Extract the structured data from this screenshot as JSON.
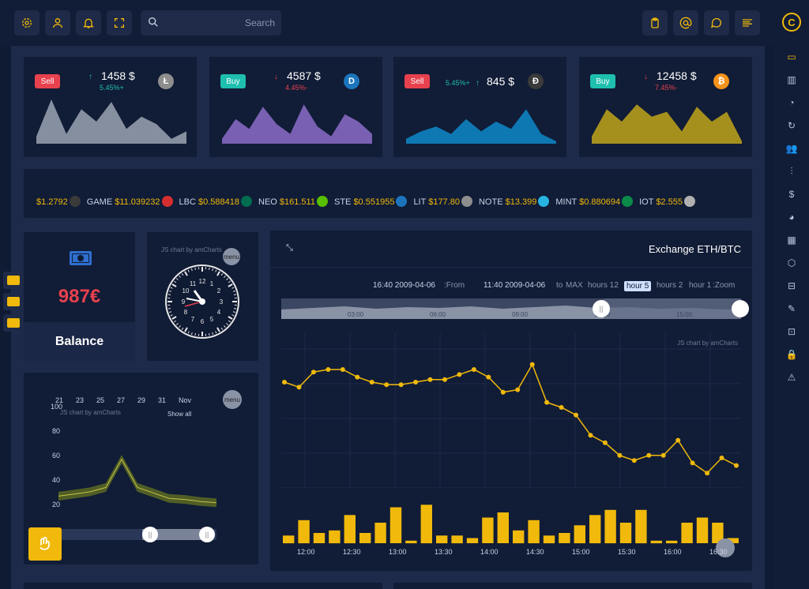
{
  "topbar": {
    "search_placeholder": "Search",
    "icons_left": [
      "gear-icon",
      "user-icon",
      "bell-icon",
      "fullscreen-icon"
    ],
    "icons_right": [
      "clipboard-icon",
      "at-icon",
      "chat-icon",
      "menu-lines-icon"
    ]
  },
  "rightbar": {
    "logo": "C",
    "items": [
      "monitor-icon",
      "bar-chart-icon",
      "pie-chart-icon",
      "refresh-icon",
      "users-icon",
      "sliders-icon",
      "dollar-icon",
      "pie-icon",
      "grid-icon",
      "box-icon",
      "inbox-icon",
      "edit-icon",
      "cast-icon",
      "lock-icon",
      "alert-icon"
    ]
  },
  "tickers_cards": [
    {
      "badge": "Sell",
      "price": "1458 $",
      "pct": "5.45%+",
      "trend": "up",
      "coin": "Ł",
      "coin_color": "#8e8e8e",
      "area_color": "#9aa3b2",
      "values": [
        3,
        18,
        4,
        14,
        9,
        17,
        6,
        11,
        8,
        2,
        5
      ]
    },
    {
      "badge": "Buy",
      "price": "4587 $",
      "pct": "4.45%-",
      "trend": "down",
      "coin": "D",
      "coin_color": "#1c75bc",
      "area_color": "#8c6cc8",
      "values": [
        2,
        10,
        6,
        15,
        8,
        4,
        16,
        7,
        3,
        12,
        9,
        4
      ]
    },
    {
      "badge": "Sell",
      "price": "845 $",
      "pct": "5.45%+",
      "trend": "up",
      "coin": "Ð",
      "coin_color": "#3a3a3a",
      "area_color": "#0e88c9",
      "values": [
        2,
        5,
        7,
        4,
        10,
        5,
        9,
        6,
        14,
        4,
        1
      ]
    },
    {
      "badge": "Buy",
      "price": "12458 $",
      "pct": "7.45%-",
      "trend": "down",
      "coin": "₿",
      "coin_color": "#f7931a",
      "area_color": "#bfa51a",
      "values": [
        3,
        14,
        9,
        16,
        11,
        13,
        5,
        15,
        9,
        13,
        1
      ]
    }
  ],
  "ticker_strip": [
    {
      "name": "",
      "value": "$1.2792",
      "color": "#3a3a3a"
    },
    {
      "name": "GAME",
      "value": "$11.039232",
      "color": "#d62e2e"
    },
    {
      "name": "LBC",
      "value": "$0.588418",
      "color": "#006d4f"
    },
    {
      "name": "NEO",
      "value": "$161.511",
      "color": "#58bf00"
    },
    {
      "name": "STE",
      "value": "$0.551955",
      "color": "#1c75bc"
    },
    {
      "name": "LIT",
      "value": "$177.80",
      "color": "#8e8e8e"
    },
    {
      "name": "NOTE",
      "value": "$13.399",
      "color": "#27b4e0"
    },
    {
      "name": "MINT",
      "value": "$0.880694",
      "color": "#0b8a49"
    },
    {
      "name": "IOT",
      "value": "$2.555",
      "color": "#b0b0b0"
    }
  ],
  "balance": {
    "amount": "987€",
    "label": "Balance"
  },
  "clock": {
    "credit": "JS chart by amCharts",
    "menu": "menu"
  },
  "band_chart": {
    "credit": "JS chart by amCharts",
    "menu": "menu",
    "show_all": "Show all",
    "xticks": [
      "21",
      "23",
      "25",
      "27",
      "29",
      "31",
      "Nov"
    ],
    "yticks": [
      "100",
      "80",
      "60",
      "40",
      "20"
    ]
  },
  "exchange": {
    "title": "Exchange ETH/BTC",
    "from_label": ":From",
    "from_value": "16:40 2009-04-06",
    "to_label": "to",
    "to_value": "11:40 2009-04-06",
    "zoom_label": ":Zoom",
    "zoom_buttons": [
      "MAX",
      "hours 12",
      "hour 5",
      "hours 2",
      "hour 1"
    ],
    "zoom_active": "hour 5",
    "scrollbar_ticks": [
      "03:00",
      "06:00",
      "09:00",
      "12:00",
      "15:00"
    ],
    "credit": "JS chart by amCharts",
    "time_ticks": [
      "12:00",
      "12:30",
      "13:00",
      "13:30",
      "14:00",
      "14:30",
      "15:00",
      "15:30",
      "16:00",
      "16:30"
    ]
  },
  "chart_data": [
    {
      "type": "line",
      "title": "Exchange ETH/BTC",
      "series": [
        {
          "values": [
            80,
            78,
            84,
            85,
            85,
            82,
            80,
            79,
            79,
            80,
            81,
            81,
            83,
            85,
            82,
            76,
            77,
            87,
            72,
            70,
            67,
            59,
            56,
            51,
            49,
            51,
            51,
            57,
            48,
            44,
            50,
            47
          ]
        }
      ],
      "ylim": [
        40,
        90
      ]
    },
    {
      "type": "bar",
      "series": [
        {
          "values": [
            3,
            9,
            4,
            5,
            11,
            4,
            8,
            14,
            1,
            15,
            3,
            3,
            2,
            10,
            12,
            5,
            9,
            3,
            4,
            7,
            11,
            13,
            8,
            13,
            1,
            1,
            8,
            10,
            8,
            2
          ]
        }
      ],
      "ylim": [
        0,
        16
      ]
    },
    {
      "type": "area",
      "xticks": [
        "21",
        "23",
        "25",
        "27",
        "29",
        "31",
        "Nov"
      ],
      "series": [
        {
          "values": [
            30,
            32,
            34,
            38,
            64,
            38,
            33,
            28,
            27,
            25,
            24
          ]
        }
      ],
      "ylim": [
        10,
        100
      ]
    }
  ],
  "side_mini": [
    "wallet-icon",
    "image-icon",
    "card-icon"
  ],
  "fab_icon": "hand-icon"
}
